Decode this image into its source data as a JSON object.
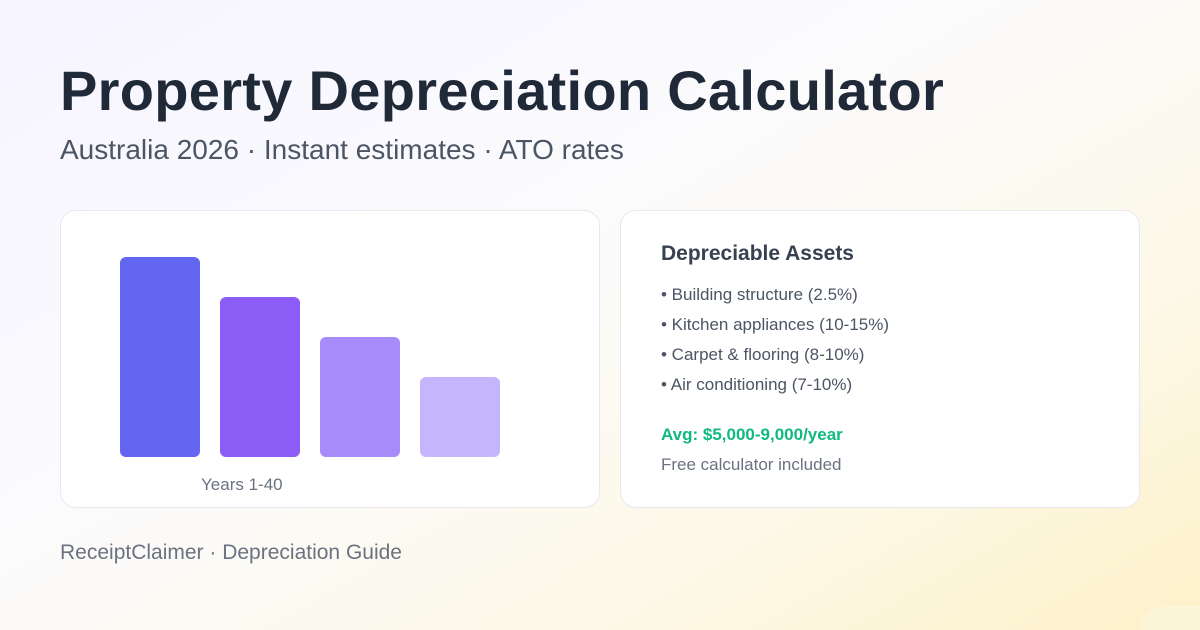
{
  "header": {
    "title": "Property Depreciation Calculator",
    "subtitle": "Australia 2026 · Instant estimates · ATO rates"
  },
  "chart_card": {
    "xlabel": "Years 1-40",
    "bars": [
      {
        "level": 100,
        "color": "#6366f1"
      },
      {
        "level": 80,
        "color": "#8b5cf6"
      },
      {
        "level": 60,
        "color": "#a78bfa"
      },
      {
        "level": 40,
        "color": "#c4b5fd"
      }
    ]
  },
  "assets_card": {
    "title": "Depreciable Assets",
    "items": [
      "• Building structure (2.5%)",
      "• Kitchen appliances (10-15%)",
      "• Carpet & flooring (8-10%)",
      "• Air conditioning (7-10%)"
    ],
    "average": "Avg: $5,000-9,000/year",
    "note": "Free calculator included",
    "accent_color": "#10b981"
  },
  "footer": "ReceiptClaimer · Depreciation Guide"
}
